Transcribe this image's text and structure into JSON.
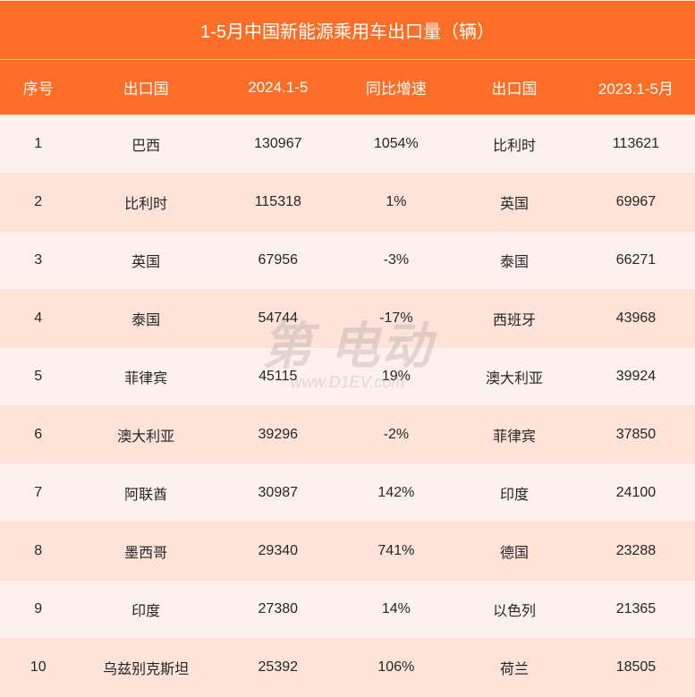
{
  "title": "1-5月中国新能源乘用车出口量（辆）",
  "columns": [
    "序号",
    "出口国",
    "2024.1-5",
    "同比增速",
    "出口国",
    "2023.1-5月"
  ],
  "rows": [
    [
      "1",
      "巴西",
      "130967",
      "1054%",
      "比利时",
      "113621"
    ],
    [
      "2",
      "比利时",
      "115318",
      "1%",
      "英国",
      "69967"
    ],
    [
      "3",
      "英国",
      "67956",
      "-3%",
      "泰国",
      "66271"
    ],
    [
      "4",
      "泰国",
      "54744",
      "-17%",
      "西班牙",
      "43968"
    ],
    [
      "5",
      "菲律宾",
      "45115",
      "19%",
      "澳大利亚",
      "39924"
    ],
    [
      "6",
      "澳大利亚",
      "39296",
      "-2%",
      "菲律宾",
      "37850"
    ],
    [
      "7",
      "阿联酋",
      "30987",
      "142%",
      "印度",
      "24100"
    ],
    [
      "8",
      "墨西哥",
      "29340",
      "741%",
      "德国",
      "23288"
    ],
    [
      "9",
      "印度",
      "27380",
      "14%",
      "以色列",
      "21365"
    ],
    [
      "10",
      "乌兹别克斯坦",
      "25392",
      "106%",
      "荷兰",
      "18505"
    ]
  ],
  "watermark": {
    "brand": "第  电动",
    "url": "www.D1EV.com"
  },
  "style": {
    "header_bg": "#ff6e26",
    "header_fg": "#ffffff",
    "row_odd_bg": "#fef1ec",
    "row_even_bg": "#fde3d8",
    "border_color": "#ffe5d9",
    "title_fontsize": 20,
    "header_fontsize": 17,
    "cell_fontsize": 16,
    "cell_color": "#262626",
    "col_widths_pct": [
      11,
      20,
      18,
      16,
      18,
      17
    ]
  }
}
